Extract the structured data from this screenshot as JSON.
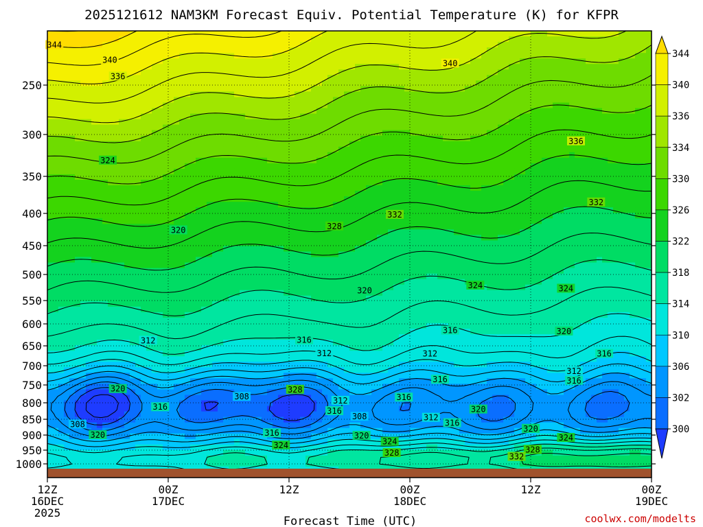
{
  "chart_data": {
    "type": "heatmap",
    "title": "2025121612 NAM3KM Forecast Equiv. Potential Temperature (K) for KFPR",
    "xlabel": "Forecast Time (UTC)",
    "ylabel": "",
    "variable": "Equivalent Potential Temperature (K)",
    "x_hours": [
      0,
      12,
      24,
      36,
      48,
      60
    ],
    "x_ticks": [
      {
        "hour": 0,
        "line1": "12Z",
        "line2": "16DEC",
        "line3": "2025"
      },
      {
        "hour": 12,
        "line1": "00Z",
        "line2": "17DEC",
        "line3": ""
      },
      {
        "hour": 24,
        "line1": "12Z",
        "line2": "",
        "line3": ""
      },
      {
        "hour": 36,
        "line1": "00Z",
        "line2": "18DEC",
        "line3": ""
      },
      {
        "hour": 48,
        "line1": "12Z",
        "line2": "",
        "line3": ""
      },
      {
        "hour": 60,
        "line1": "00Z",
        "line2": "19DEC",
        "line3": ""
      }
    ],
    "xlim": [
      0,
      60
    ],
    "y_pressure_levels": [
      250,
      300,
      350,
      400,
      450,
      500,
      550,
      600,
      650,
      700,
      750,
      800,
      850,
      900,
      950,
      1000
    ],
    "y_tick_labels": [
      "250",
      "300",
      "350",
      "400",
      "450",
      "500",
      "550",
      "600",
      "650",
      "700",
      "750",
      "800",
      "850",
      "900",
      "950",
      "1000"
    ],
    "ylim_hPa": [
      200,
      1013
    ],
    "surface_pressure_hPa": 1013,
    "colorbar_ticks": [
      300,
      302,
      306,
      310,
      314,
      318,
      322,
      326,
      330,
      334,
      336,
      340,
      344
    ],
    "colorbar_tick_labels": [
      "300",
      "302",
      "306",
      "310",
      "314",
      "318",
      "322",
      "326",
      "330",
      "334",
      "336",
      "340",
      "344"
    ],
    "colorbar_colors": [
      "#1e3cff",
      "#0a6eff",
      "#0096ff",
      "#00c8ff",
      "#00e6dc",
      "#00e6a0",
      "#00dc64",
      "#14d21e",
      "#3cd700",
      "#6edc00",
      "#a0e600",
      "#d2f000",
      "#f5f000",
      "#ffdc00"
    ],
    "contour_labels": [
      {
        "text": "344",
        "hour": 0.7,
        "p": 213
      },
      {
        "text": "340",
        "hour": 6.2,
        "p": 227
      },
      {
        "text": "336",
        "hour": 7,
        "p": 242
      },
      {
        "text": "340",
        "hour": 40,
        "p": 230
      },
      {
        "text": "324",
        "hour": 6,
        "p": 331
      },
      {
        "text": "336",
        "hour": 52.5,
        "p": 308
      },
      {
        "text": "332",
        "hour": 54.5,
        "p": 385
      },
      {
        "text": "332",
        "hour": 34.5,
        "p": 402
      },
      {
        "text": "328",
        "hour": 28.5,
        "p": 420
      },
      {
        "text": "320",
        "hour": 13,
        "p": 426
      },
      {
        "text": "324",
        "hour": 42.5,
        "p": 521
      },
      {
        "text": "324",
        "hour": 51.5,
        "p": 527
      },
      {
        "text": "320",
        "hour": 31.5,
        "p": 531
      },
      {
        "text": "316",
        "hour": 40,
        "p": 615
      },
      {
        "text": "320",
        "hour": 51.3,
        "p": 617
      },
      {
        "text": "312",
        "hour": 10,
        "p": 638
      },
      {
        "text": "316",
        "hour": 25.5,
        "p": 637
      },
      {
        "text": "316",
        "hour": 55.3,
        "p": 670
      },
      {
        "text": "312",
        "hour": 27.5,
        "p": 669
      },
      {
        "text": "312",
        "hour": 38,
        "p": 670
      },
      {
        "text": "312",
        "hour": 52.3,
        "p": 714
      },
      {
        "text": "316",
        "hour": 39,
        "p": 736
      },
      {
        "text": "316",
        "hour": 52.3,
        "p": 739
      },
      {
        "text": "320",
        "hour": 7,
        "p": 761
      },
      {
        "text": "328",
        "hour": 24.6,
        "p": 763
      },
      {
        "text": "308",
        "hour": 19.3,
        "p": 783
      },
      {
        "text": "316",
        "hour": 35.4,
        "p": 785
      },
      {
        "text": "312",
        "hour": 29.1,
        "p": 794
      },
      {
        "text": "316",
        "hour": 11.2,
        "p": 813
      },
      {
        "text": "320",
        "hour": 42.8,
        "p": 820
      },
      {
        "text": "316",
        "hour": 28.5,
        "p": 825
      },
      {
        "text": "308",
        "hour": 31,
        "p": 842
      },
      {
        "text": "312",
        "hour": 38.1,
        "p": 845
      },
      {
        "text": "308",
        "hour": 3,
        "p": 866
      },
      {
        "text": "316",
        "hour": 40.2,
        "p": 862
      },
      {
        "text": "320",
        "hour": 48,
        "p": 880
      },
      {
        "text": "316",
        "hour": 22.3,
        "p": 894
      },
      {
        "text": "320",
        "hour": 5,
        "p": 900
      },
      {
        "text": "320",
        "hour": 31.2,
        "p": 902
      },
      {
        "text": "324",
        "hour": 51.5,
        "p": 909
      },
      {
        "text": "324",
        "hour": 23.2,
        "p": 934
      },
      {
        "text": "324",
        "hour": 34,
        "p": 922
      },
      {
        "text": "328",
        "hour": 48.2,
        "p": 949
      },
      {
        "text": "328",
        "hour": 34.2,
        "p": 960
      },
      {
        "text": "332",
        "hour": 46.6,
        "p": 974
      }
    ]
  },
  "credit": "coolwx.com/modelts"
}
